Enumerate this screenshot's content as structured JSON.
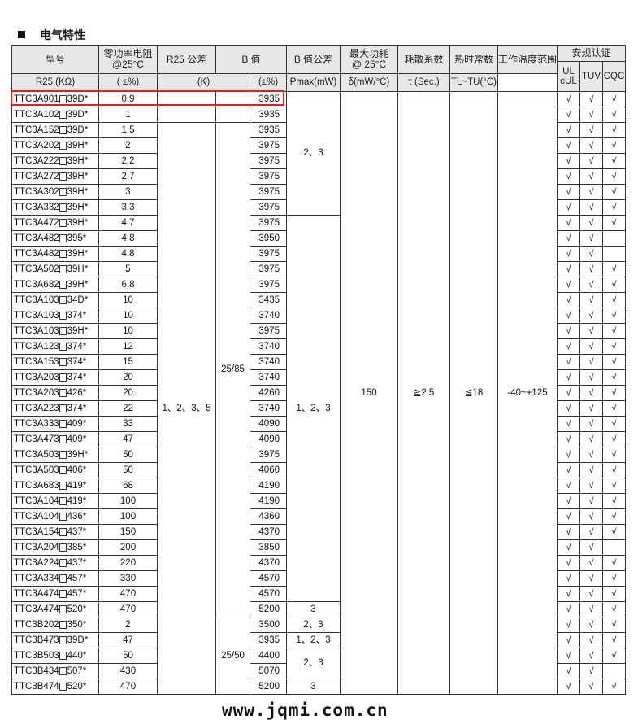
{
  "heading": "电气特性",
  "header": {
    "model": "型号",
    "r25_title": "零功率电阻\n@25°C",
    "r25_unit": "R25 (KΩ)",
    "r25_tol_title": "R25 公差",
    "r25_tol_unit": "( ±%)",
    "b_title": "B 值",
    "b_unit": "(K)",
    "b_tol_title": "B 值公差",
    "b_tol_unit": "(±%)",
    "pmax_title": "最大功耗\n@ 25°C",
    "pmax_unit": "Pmax(mW)",
    "delta_title": "耗散系数",
    "delta_unit": "δ(mW/°C)",
    "tau_title": "热时常数",
    "tau_unit": "τ (Sec.)",
    "temp_title": "工作温度范围",
    "temp_unit": "TL~TU(°C)",
    "cert_title": "安规认证",
    "cert_ul": "UL\ncUL",
    "cert_tuv": "TUV",
    "cert_cqc": "CQC"
  },
  "check_mark": "√",
  "shared": {
    "r25_tolerance": "1、2、3、5",
    "b_condition_a": "25/85",
    "b_condition_b": "25/50",
    "pmax": "150",
    "delta": "≧2.5",
    "tau": "≦18",
    "temp_range": "-40~+125"
  },
  "b_tolerance_groups": [
    {
      "value": "2、3",
      "rows": 8
    },
    {
      "value": "1、2、3",
      "rows": 25
    },
    {
      "value": "3",
      "rows": 1
    },
    {
      "value": "2、3",
      "rows": 1
    },
    {
      "value": "1、2、3",
      "rows": 1
    },
    {
      "value": "2、3",
      "rows": 2
    },
    {
      "value": "3",
      "rows": 1
    }
  ],
  "highlighted_row": 0,
  "rows": [
    {
      "prefix": "TTC3A901",
      "suffix": "39D*",
      "r25": "0.9",
      "b": "3935",
      "cert": [
        1,
        1,
        1
      ]
    },
    {
      "prefix": "TTC3A102",
      "suffix": "39D*",
      "r25": "1",
      "b": "3935",
      "cert": [
        1,
        1,
        1
      ]
    },
    {
      "prefix": "TTC3A152",
      "suffix": "39D*",
      "r25": "1.5",
      "b": "3935",
      "cert": [
        1,
        1,
        1
      ]
    },
    {
      "prefix": "TTC3A202",
      "suffix": "39H*",
      "r25": "2",
      "b": "3975",
      "cert": [
        1,
        1,
        1
      ]
    },
    {
      "prefix": "TTC3A222",
      "suffix": "39H*",
      "r25": "2.2",
      "b": "3975",
      "cert": [
        1,
        1,
        1
      ]
    },
    {
      "prefix": "TTC3A272",
      "suffix": "39H*",
      "r25": "2.7",
      "b": "3975",
      "cert": [
        1,
        1,
        1
      ]
    },
    {
      "prefix": "TTC3A302",
      "suffix": "39H*",
      "r25": "3",
      "b": "3975",
      "cert": [
        1,
        1,
        1
      ]
    },
    {
      "prefix": "TTC3A332",
      "suffix": "39H*",
      "r25": "3.3",
      "b": "3975",
      "cert": [
        1,
        1,
        1
      ]
    },
    {
      "prefix": "TTC3A472",
      "suffix": "39H*",
      "r25": "4.7",
      "b": "3975",
      "cert": [
        1,
        1,
        1
      ]
    },
    {
      "prefix": "TTC3A482",
      "suffix": "395*",
      "r25": "4.8",
      "b": "3950",
      "cert": [
        1,
        1,
        0
      ]
    },
    {
      "prefix": "TTC3A482",
      "suffix": "39H*",
      "r25": "4.8",
      "b": "3975",
      "cert": [
        1,
        1,
        0
      ]
    },
    {
      "prefix": "TTC3A502",
      "suffix": "39H*",
      "r25": "5",
      "b": "3975",
      "cert": [
        1,
        1,
        1
      ]
    },
    {
      "prefix": "TTC3A682",
      "suffix": "39H*",
      "r25": "6.8",
      "b": "3975",
      "cert": [
        1,
        1,
        1
      ]
    },
    {
      "prefix": "TTC3A103",
      "suffix": "34D*",
      "r25": "10",
      "b": "3435",
      "cert": [
        1,
        1,
        1
      ]
    },
    {
      "prefix": "TTC3A103",
      "suffix": "374*",
      "r25": "10",
      "b": "3740",
      "cert": [
        1,
        1,
        1
      ]
    },
    {
      "prefix": "TTC3A103",
      "suffix": "39H*",
      "r25": "10",
      "b": "3975",
      "cert": [
        1,
        1,
        1
      ]
    },
    {
      "prefix": "TTC3A123",
      "suffix": "374*",
      "r25": "12",
      "b": "3740",
      "cert": [
        1,
        1,
        1
      ]
    },
    {
      "prefix": "TTC3A153",
      "suffix": "374*",
      "r25": "15",
      "b": "3740",
      "cert": [
        1,
        1,
        1
      ]
    },
    {
      "prefix": "TTC3A203",
      "suffix": "374*",
      "r25": "20",
      "b": "3740",
      "cert": [
        1,
        1,
        1
      ]
    },
    {
      "prefix": "TTC3A203",
      "suffix": "426*",
      "r25": "20",
      "b": "4260",
      "cert": [
        1,
        1,
        1
      ]
    },
    {
      "prefix": "TTC3A223",
      "suffix": "374*",
      "r25": "22",
      "b": "3740",
      "cert": [
        1,
        1,
        1
      ]
    },
    {
      "prefix": "TTC3A333",
      "suffix": "409*",
      "r25": "33",
      "b": "4090",
      "cert": [
        1,
        1,
        1
      ]
    },
    {
      "prefix": "TTC3A473",
      "suffix": "409*",
      "r25": "47",
      "b": "4090",
      "cert": [
        1,
        1,
        1
      ]
    },
    {
      "prefix": "TTC3A503",
      "suffix": "39H*",
      "r25": "50",
      "b": "3975",
      "cert": [
        1,
        1,
        1
      ]
    },
    {
      "prefix": "TTC3A503",
      "suffix": "406*",
      "r25": "50",
      "b": "4060",
      "cert": [
        1,
        1,
        1
      ]
    },
    {
      "prefix": "TTC3A683",
      "suffix": "419*",
      "r25": "68",
      "b": "4190",
      "cert": [
        1,
        1,
        1
      ]
    },
    {
      "prefix": "TTC3A104",
      "suffix": "419*",
      "r25": "100",
      "b": "4190",
      "cert": [
        1,
        1,
        1
      ]
    },
    {
      "prefix": "TTC3A104",
      "suffix": "436*",
      "r25": "100",
      "b": "4360",
      "cert": [
        1,
        1,
        1
      ]
    },
    {
      "prefix": "TTC3A154",
      "suffix": "437*",
      "r25": "150",
      "b": "4370",
      "cert": [
        1,
        1,
        1
      ]
    },
    {
      "prefix": "TTC3A204",
      "suffix": "385*",
      "r25": "200",
      "b": "3850",
      "cert": [
        1,
        1,
        0
      ]
    },
    {
      "prefix": "TTC3A224",
      "suffix": "437*",
      "r25": "220",
      "b": "4370",
      "cert": [
        1,
        1,
        1
      ]
    },
    {
      "prefix": "TTC3A334",
      "suffix": "457*",
      "r25": "330",
      "b": "4570",
      "cert": [
        1,
        1,
        1
      ]
    },
    {
      "prefix": "TTC3A474",
      "suffix": "457*",
      "r25": "470",
      "b": "4570",
      "cert": [
        1,
        1,
        1
      ]
    },
    {
      "prefix": "TTC3A474",
      "suffix": "520*",
      "r25": "470",
      "b": "5200",
      "cert": [
        1,
        1,
        1
      ]
    },
    {
      "prefix": "TTC3B202",
      "suffix": "350*",
      "r25": "2",
      "b": "3500",
      "cert": [
        1,
        1,
        1
      ]
    },
    {
      "prefix": "TTC3B473",
      "suffix": "39D*",
      "r25": "47",
      "b": "3935",
      "cert": [
        1,
        1,
        1
      ]
    },
    {
      "prefix": "TTC3B503",
      "suffix": "440*",
      "r25": "50",
      "b": "4400",
      "cert": [
        1,
        1,
        1
      ]
    },
    {
      "prefix": "TTC3B434",
      "suffix": "507*",
      "r25": "430",
      "b": "5070",
      "cert": [
        1,
        1,
        0
      ]
    },
    {
      "prefix": "TTC3B474",
      "suffix": "520*",
      "r25": "470",
      "b": "5200",
      "cert": [
        1,
        1,
        1
      ]
    }
  ],
  "watermark": "www.jqmi.com.cn"
}
